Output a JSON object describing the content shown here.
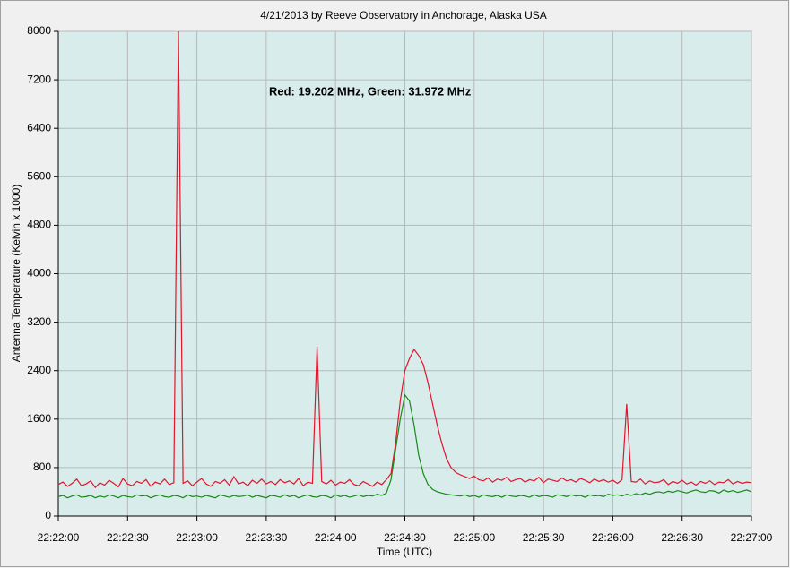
{
  "chart_data": {
    "type": "line",
    "title": "4/21/2013  by  Reeve Observatory  in  Anchorage, Alaska  USA",
    "annotation": "Red: 19.202 MHz, Green: 31.972 MHz",
    "xlabel": "Time (UTC)",
    "ylabel": "Antenna Temperature (Kelvin x 1000)",
    "xlim": [
      "22:22:00",
      "22:27:00"
    ],
    "xticks": [
      "22:22:00",
      "22:22:30",
      "22:23:00",
      "22:23:30",
      "22:24:00",
      "22:24:30",
      "22:25:00",
      "22:25:30",
      "22:26:00",
      "22:26:30",
      "22:27:00"
    ],
    "ylim": [
      0,
      8000
    ],
    "yticks": [
      0,
      800,
      1600,
      2400,
      3200,
      4000,
      4800,
      5600,
      6400,
      7200,
      8000
    ],
    "grid": true,
    "x": [
      "22:22:00",
      "22:22:02",
      "22:22:04",
      "22:22:06",
      "22:22:08",
      "22:22:10",
      "22:22:12",
      "22:22:14",
      "22:22:16",
      "22:22:18",
      "22:22:20",
      "22:22:22",
      "22:22:24",
      "22:22:26",
      "22:22:28",
      "22:22:30",
      "22:22:32",
      "22:22:34",
      "22:22:36",
      "22:22:38",
      "22:22:40",
      "22:22:42",
      "22:22:44",
      "22:22:46",
      "22:22:48",
      "22:22:50",
      "22:22:52",
      "22:22:54",
      "22:22:56",
      "22:22:58",
      "22:23:00",
      "22:23:02",
      "22:23:04",
      "22:23:06",
      "22:23:08",
      "22:23:10",
      "22:23:12",
      "22:23:14",
      "22:23:16",
      "22:23:18",
      "22:23:20",
      "22:23:22",
      "22:23:24",
      "22:23:26",
      "22:23:28",
      "22:23:30",
      "22:23:32",
      "22:23:34",
      "22:23:36",
      "22:23:38",
      "22:23:40",
      "22:23:42",
      "22:23:44",
      "22:23:46",
      "22:23:48",
      "22:23:50",
      "22:23:52",
      "22:23:54",
      "22:23:56",
      "22:23:58",
      "22:24:00",
      "22:24:02",
      "22:24:04",
      "22:24:06",
      "22:24:08",
      "22:24:10",
      "22:24:12",
      "22:24:14",
      "22:24:16",
      "22:24:18",
      "22:24:20",
      "22:24:22",
      "22:24:24",
      "22:24:26",
      "22:24:28",
      "22:24:30",
      "22:24:32",
      "22:24:34",
      "22:24:36",
      "22:24:38",
      "22:24:40",
      "22:24:42",
      "22:24:44",
      "22:24:46",
      "22:24:48",
      "22:24:50",
      "22:24:52",
      "22:24:54",
      "22:24:56",
      "22:24:58",
      "22:25:00",
      "22:25:02",
      "22:25:04",
      "22:25:06",
      "22:25:08",
      "22:25:10",
      "22:25:12",
      "22:25:14",
      "22:25:16",
      "22:25:18",
      "22:25:20",
      "22:25:22",
      "22:25:24",
      "22:25:26",
      "22:25:28",
      "22:25:30",
      "22:25:32",
      "22:25:34",
      "22:25:36",
      "22:25:38",
      "22:25:40",
      "22:25:42",
      "22:25:44",
      "22:25:46",
      "22:25:48",
      "22:25:50",
      "22:25:52",
      "22:25:54",
      "22:25:56",
      "22:25:58",
      "22:26:00",
      "22:26:02",
      "22:26:04",
      "22:26:06",
      "22:26:08",
      "22:26:10",
      "22:26:12",
      "22:26:14",
      "22:26:16",
      "22:26:18",
      "22:26:20",
      "22:26:22",
      "22:26:24",
      "22:26:26",
      "22:26:28",
      "22:26:30",
      "22:26:32",
      "22:26:34",
      "22:26:36",
      "22:26:38",
      "22:26:40",
      "22:26:42",
      "22:26:44",
      "22:26:46",
      "22:26:48",
      "22:26:50",
      "22:26:52",
      "22:26:54",
      "22:26:56",
      "22:26:58",
      "22:27:00"
    ],
    "series": [
      {
        "color": "#e3142b",
        "values": [
          520,
          560,
          490,
          540,
          610,
          500,
          530,
          580,
          470,
          550,
          510,
          590,
          540,
          480,
          620,
          530,
          500,
          570,
          540,
          600,
          490,
          560,
          530,
          610,
          520,
          550,
          8000,
          540,
          580,
          500,
          560,
          620,
          530,
          490,
          570,
          540,
          600,
          510,
          650,
          530,
          560,
          500,
          590,
          540,
          610,
          530,
          570,
          520,
          600,
          550,
          580,
          530,
          620,
          500,
          560,
          540,
          2800,
          570,
          530,
          590,
          510,
          560,
          540,
          600,
          520,
          500,
          570,
          530,
          490,
          560,
          520,
          600,
          700,
          1200,
          1900,
          2400,
          2600,
          2750,
          2650,
          2500,
          2200,
          1850,
          1500,
          1200,
          950,
          800,
          720,
          680,
          650,
          620,
          660,
          600,
          580,
          630,
          560,
          610,
          590,
          640,
          570,
          600,
          620,
          560,
          600,
          580,
          640,
          550,
          610,
          590,
          570,
          630,
          580,
          600,
          560,
          620,
          590,
          550,
          610,
          570,
          600,
          560,
          590,
          540,
          600,
          1850,
          570,
          560,
          610,
          530,
          580,
          550,
          560,
          600,
          520,
          570,
          540,
          590,
          530,
          560,
          510,
          570,
          540,
          580,
          520,
          560,
          550,
          600,
          530,
          570,
          540,
          560,
          550
        ]
      },
      {
        "color": "#168a16",
        "values": [
          320,
          340,
          300,
          330,
          350,
          310,
          320,
          340,
          300,
          330,
          310,
          350,
          330,
          300,
          340,
          320,
          310,
          350,
          330,
          340,
          300,
          330,
          350,
          320,
          310,
          340,
          330,
          300,
          350,
          320,
          330,
          310,
          340,
          320,
          300,
          350,
          330,
          310,
          340,
          320,
          330,
          350,
          310,
          340,
          320,
          300,
          340,
          330,
          310,
          350,
          320,
          340,
          300,
          330,
          350,
          320,
          310,
          340,
          330,
          300,
          350,
          320,
          340,
          310,
          330,
          350,
          320,
          340,
          330,
          360,
          340,
          380,
          600,
          1100,
          1600,
          2000,
          1900,
          1500,
          1000,
          700,
          520,
          440,
          400,
          380,
          360,
          350,
          340,
          330,
          350,
          320,
          340,
          310,
          350,
          330,
          320,
          340,
          310,
          350,
          330,
          320,
          340,
          330,
          310,
          350,
          320,
          340,
          330,
          310,
          350,
          340,
          320,
          350,
          330,
          340,
          310,
          350,
          330,
          340,
          320,
          360,
          340,
          350,
          330,
          360,
          340,
          370,
          350,
          380,
          360,
          390,
          400,
          380,
          410,
          390,
          420,
          400,
          380,
          410,
          430,
          400,
          390,
          420,
          410,
          380,
          430,
          400,
          420,
          390,
          410,
          430,
          400
        ]
      }
    ]
  }
}
